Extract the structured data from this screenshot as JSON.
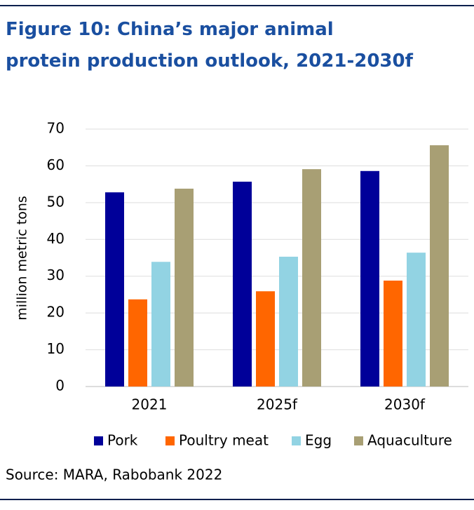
{
  "chart_data": {
    "type": "bar",
    "title": "Figure 10: China’s major animal protein production outlook, 2021-2030f",
    "y_label": "million metric tons",
    "categories": [
      "2021",
      "2025f",
      "2030f"
    ],
    "series": [
      {
        "name": "Pork",
        "color": "#000099",
        "values": [
          52.8,
          55.7,
          58.6
        ]
      },
      {
        "name": "Poultry meat",
        "color": "#ff6600",
        "values": [
          23.7,
          25.9,
          28.8
        ]
      },
      {
        "name": "Egg",
        "color": "#92d3e3",
        "values": [
          33.9,
          35.3,
          36.4
        ]
      },
      {
        "name": "Aquaculture",
        "color": "#a89f74",
        "values": [
          53.8,
          59.1,
          65.6
        ]
      }
    ],
    "ylim": [
      0,
      70
    ],
    "yticks": [
      0,
      10,
      20,
      30,
      40,
      50,
      60,
      70
    ],
    "grid": true,
    "legend": "bottom",
    "source": "Source: MARA, Rabobank 2022"
  }
}
